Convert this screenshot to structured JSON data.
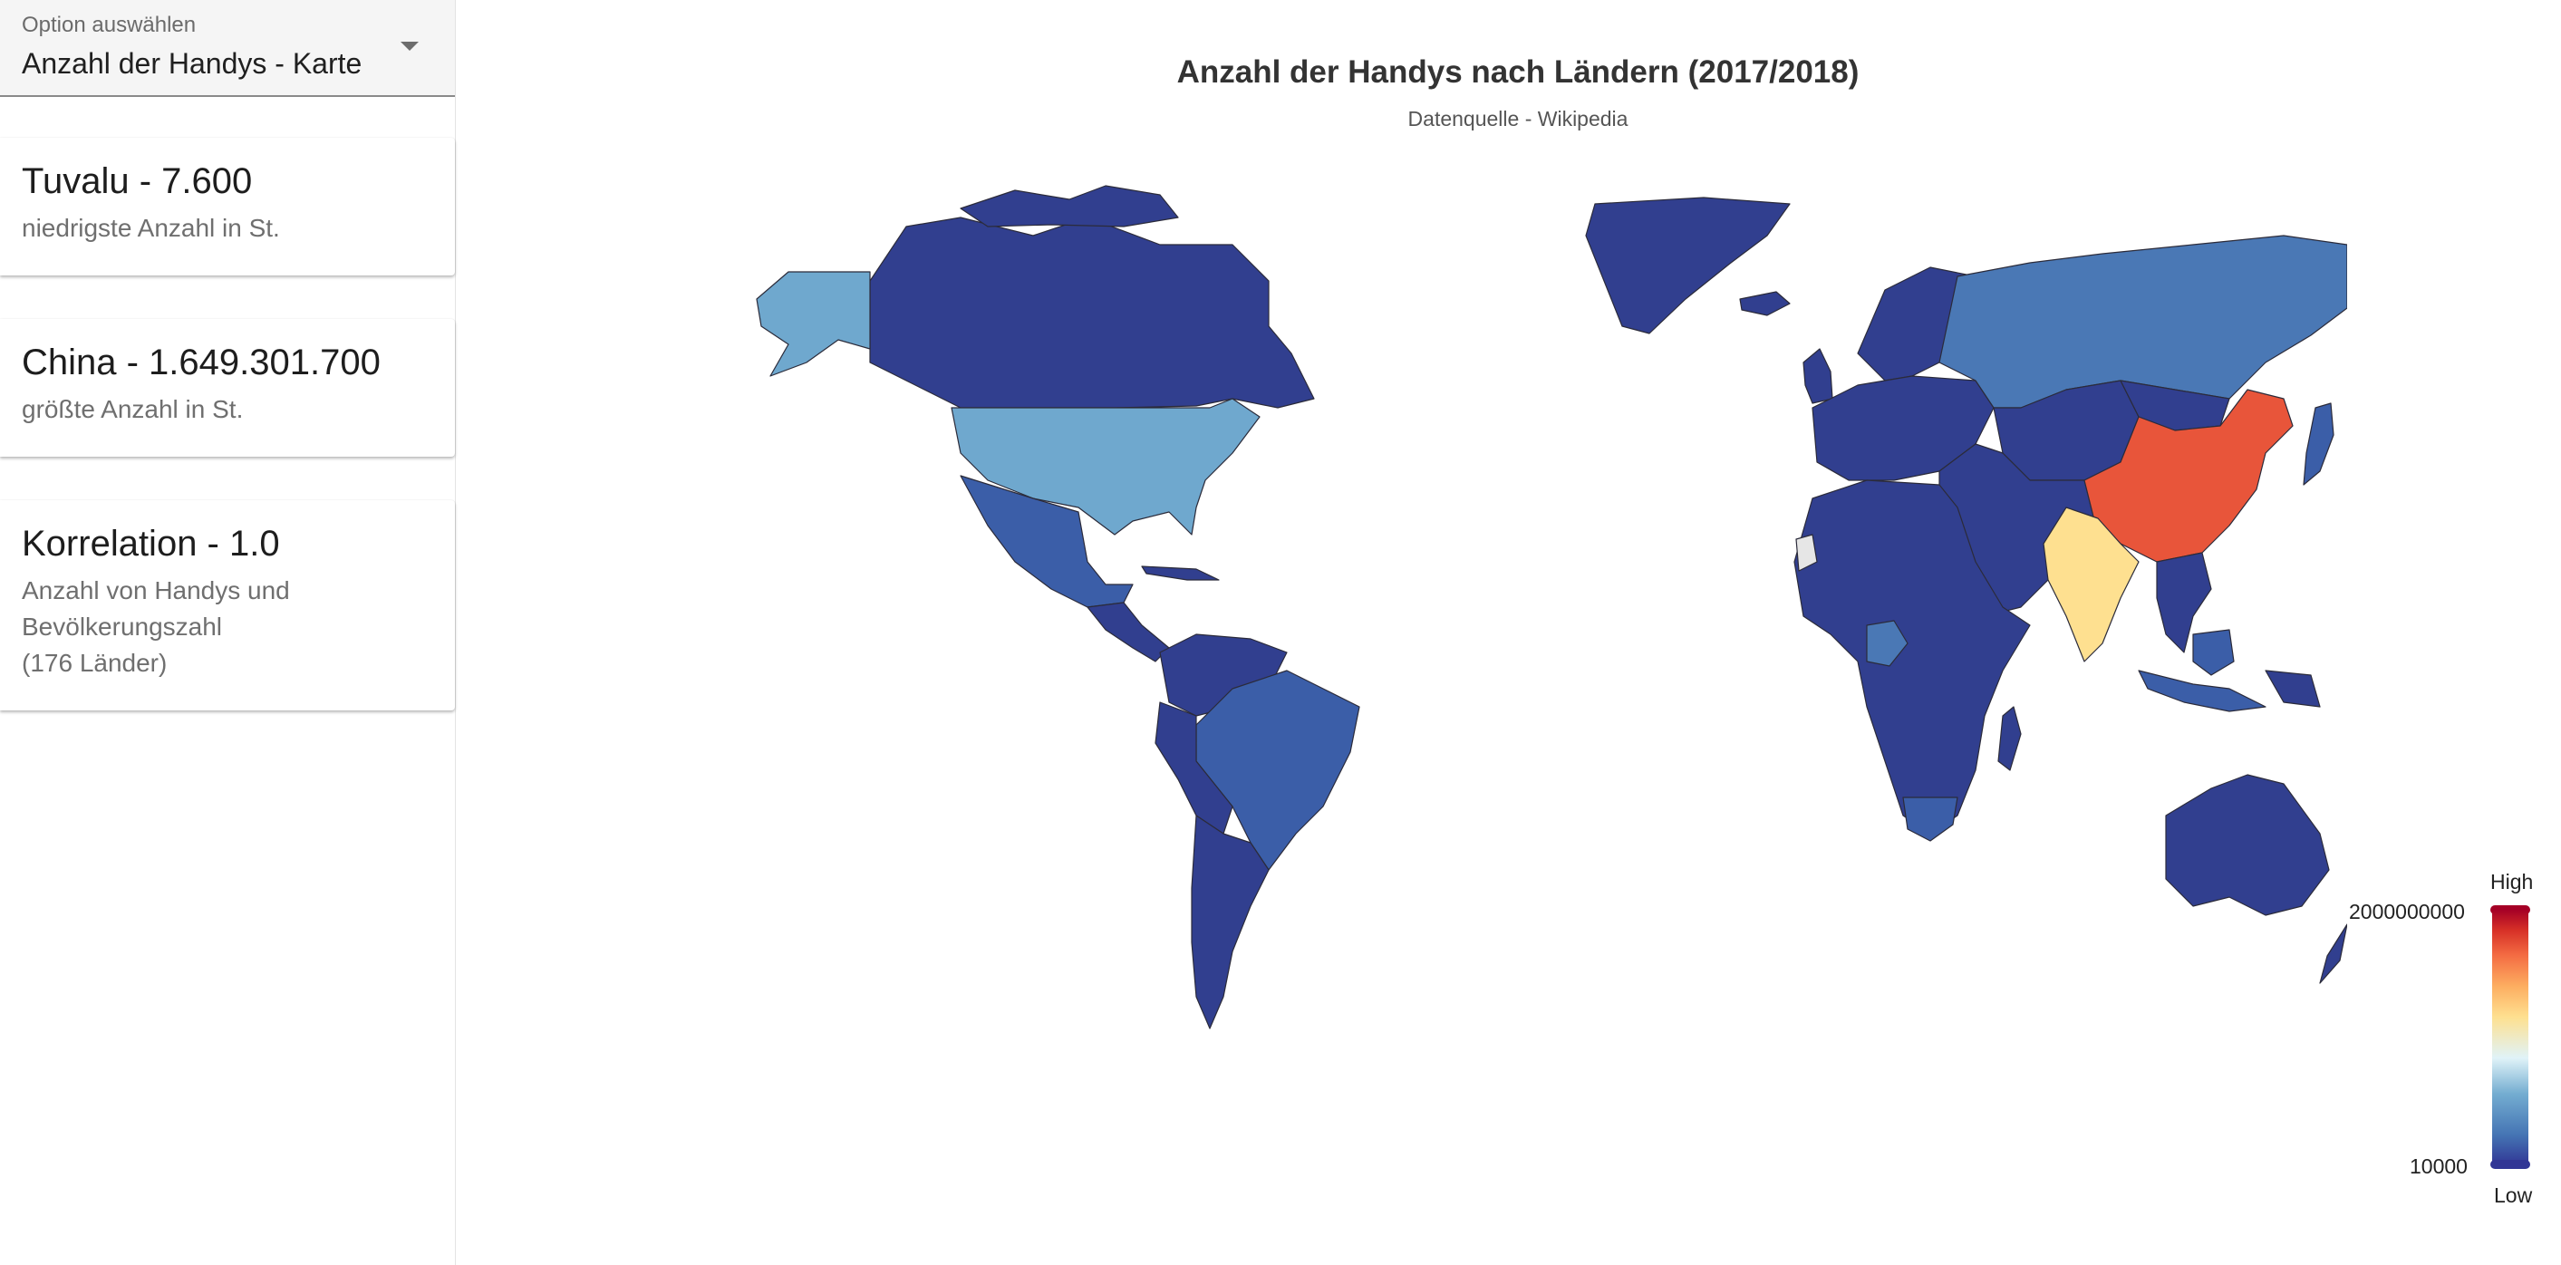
{
  "sidebar": {
    "select": {
      "label": "Option auswählen",
      "value": "Anzahl der Handys - Karte"
    },
    "cards": [
      {
        "title": "Tuvalu - 7.600",
        "subtitle": "niedrigste Anzahl in St."
      },
      {
        "title": "China - 1.649.301.700",
        "subtitle": "größte Anzahl in St."
      },
      {
        "title": "Korrelation - 1.0",
        "subtitle_lines": [
          "Anzahl von Handys und",
          "Bevölkerungszahl",
          "(176 Länder)"
        ]
      }
    ]
  },
  "chart": {
    "title": "Anzahl der Handys nach Ländern (2017/2018)",
    "subtitle": "Datenquelle - Wikipedia",
    "legend": {
      "high_label": "High",
      "low_label": "Low",
      "max_value": "2000000000",
      "min_value": "10000"
    }
  },
  "colors": {
    "very_low": "#313f8f",
    "low": "#3b5ea8",
    "mid_low": "#4a78b5",
    "light_blue": "#6fa8ce",
    "yellow": "#fee090",
    "high": "#e8553a",
    "no_data": "#e6e6e6"
  },
  "chart_data": {
    "type": "choropleth",
    "value_range": [
      10000,
      2000000000
    ],
    "regions": [
      {
        "name": "China",
        "value": 1649301700
      },
      {
        "name": "Tuvalu",
        "value": 7600
      }
    ]
  }
}
